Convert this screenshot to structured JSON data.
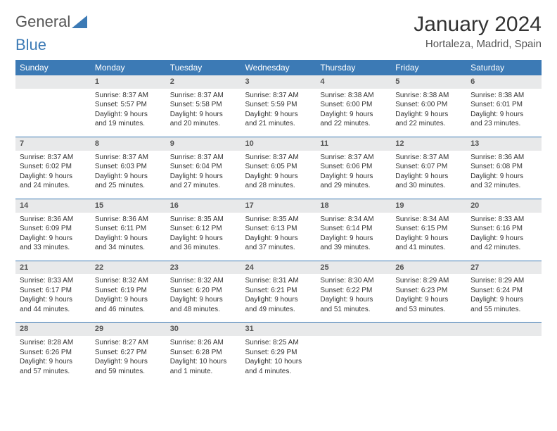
{
  "logo": {
    "word1": "General",
    "word2": "Blue"
  },
  "title": "January 2024",
  "subtitle": "Hortaleza, Madrid, Spain",
  "colors": {
    "header_bg": "#3c7ab5",
    "header_text": "#ffffff",
    "daynum_bg": "#e8e9ea",
    "rule": "#3c7ab5",
    "page_bg": "#ffffff"
  },
  "weekdays": [
    "Sunday",
    "Monday",
    "Tuesday",
    "Wednesday",
    "Thursday",
    "Friday",
    "Saturday"
  ],
  "grid": [
    [
      {
        "n": "",
        "sr": "",
        "ss": "",
        "d1": "",
        "d2": ""
      },
      {
        "n": "1",
        "sr": "Sunrise: 8:37 AM",
        "ss": "Sunset: 5:57 PM",
        "d1": "Daylight: 9 hours",
        "d2": "and 19 minutes."
      },
      {
        "n": "2",
        "sr": "Sunrise: 8:37 AM",
        "ss": "Sunset: 5:58 PM",
        "d1": "Daylight: 9 hours",
        "d2": "and 20 minutes."
      },
      {
        "n": "3",
        "sr": "Sunrise: 8:37 AM",
        "ss": "Sunset: 5:59 PM",
        "d1": "Daylight: 9 hours",
        "d2": "and 21 minutes."
      },
      {
        "n": "4",
        "sr": "Sunrise: 8:38 AM",
        "ss": "Sunset: 6:00 PM",
        "d1": "Daylight: 9 hours",
        "d2": "and 22 minutes."
      },
      {
        "n": "5",
        "sr": "Sunrise: 8:38 AM",
        "ss": "Sunset: 6:00 PM",
        "d1": "Daylight: 9 hours",
        "d2": "and 22 minutes."
      },
      {
        "n": "6",
        "sr": "Sunrise: 8:38 AM",
        "ss": "Sunset: 6:01 PM",
        "d1": "Daylight: 9 hours",
        "d2": "and 23 minutes."
      }
    ],
    [
      {
        "n": "7",
        "sr": "Sunrise: 8:37 AM",
        "ss": "Sunset: 6:02 PM",
        "d1": "Daylight: 9 hours",
        "d2": "and 24 minutes."
      },
      {
        "n": "8",
        "sr": "Sunrise: 8:37 AM",
        "ss": "Sunset: 6:03 PM",
        "d1": "Daylight: 9 hours",
        "d2": "and 25 minutes."
      },
      {
        "n": "9",
        "sr": "Sunrise: 8:37 AM",
        "ss": "Sunset: 6:04 PM",
        "d1": "Daylight: 9 hours",
        "d2": "and 27 minutes."
      },
      {
        "n": "10",
        "sr": "Sunrise: 8:37 AM",
        "ss": "Sunset: 6:05 PM",
        "d1": "Daylight: 9 hours",
        "d2": "and 28 minutes."
      },
      {
        "n": "11",
        "sr": "Sunrise: 8:37 AM",
        "ss": "Sunset: 6:06 PM",
        "d1": "Daylight: 9 hours",
        "d2": "and 29 minutes."
      },
      {
        "n": "12",
        "sr": "Sunrise: 8:37 AM",
        "ss": "Sunset: 6:07 PM",
        "d1": "Daylight: 9 hours",
        "d2": "and 30 minutes."
      },
      {
        "n": "13",
        "sr": "Sunrise: 8:36 AM",
        "ss": "Sunset: 6:08 PM",
        "d1": "Daylight: 9 hours",
        "d2": "and 32 minutes."
      }
    ],
    [
      {
        "n": "14",
        "sr": "Sunrise: 8:36 AM",
        "ss": "Sunset: 6:09 PM",
        "d1": "Daylight: 9 hours",
        "d2": "and 33 minutes."
      },
      {
        "n": "15",
        "sr": "Sunrise: 8:36 AM",
        "ss": "Sunset: 6:11 PM",
        "d1": "Daylight: 9 hours",
        "d2": "and 34 minutes."
      },
      {
        "n": "16",
        "sr": "Sunrise: 8:35 AM",
        "ss": "Sunset: 6:12 PM",
        "d1": "Daylight: 9 hours",
        "d2": "and 36 minutes."
      },
      {
        "n": "17",
        "sr": "Sunrise: 8:35 AM",
        "ss": "Sunset: 6:13 PM",
        "d1": "Daylight: 9 hours",
        "d2": "and 37 minutes."
      },
      {
        "n": "18",
        "sr": "Sunrise: 8:34 AM",
        "ss": "Sunset: 6:14 PM",
        "d1": "Daylight: 9 hours",
        "d2": "and 39 minutes."
      },
      {
        "n": "19",
        "sr": "Sunrise: 8:34 AM",
        "ss": "Sunset: 6:15 PM",
        "d1": "Daylight: 9 hours",
        "d2": "and 41 minutes."
      },
      {
        "n": "20",
        "sr": "Sunrise: 8:33 AM",
        "ss": "Sunset: 6:16 PM",
        "d1": "Daylight: 9 hours",
        "d2": "and 42 minutes."
      }
    ],
    [
      {
        "n": "21",
        "sr": "Sunrise: 8:33 AM",
        "ss": "Sunset: 6:17 PM",
        "d1": "Daylight: 9 hours",
        "d2": "and 44 minutes."
      },
      {
        "n": "22",
        "sr": "Sunrise: 8:32 AM",
        "ss": "Sunset: 6:19 PM",
        "d1": "Daylight: 9 hours",
        "d2": "and 46 minutes."
      },
      {
        "n": "23",
        "sr": "Sunrise: 8:32 AM",
        "ss": "Sunset: 6:20 PM",
        "d1": "Daylight: 9 hours",
        "d2": "and 48 minutes."
      },
      {
        "n": "24",
        "sr": "Sunrise: 8:31 AM",
        "ss": "Sunset: 6:21 PM",
        "d1": "Daylight: 9 hours",
        "d2": "and 49 minutes."
      },
      {
        "n": "25",
        "sr": "Sunrise: 8:30 AM",
        "ss": "Sunset: 6:22 PM",
        "d1": "Daylight: 9 hours",
        "d2": "and 51 minutes."
      },
      {
        "n": "26",
        "sr": "Sunrise: 8:29 AM",
        "ss": "Sunset: 6:23 PM",
        "d1": "Daylight: 9 hours",
        "d2": "and 53 minutes."
      },
      {
        "n": "27",
        "sr": "Sunrise: 8:29 AM",
        "ss": "Sunset: 6:24 PM",
        "d1": "Daylight: 9 hours",
        "d2": "and 55 minutes."
      }
    ],
    [
      {
        "n": "28",
        "sr": "Sunrise: 8:28 AM",
        "ss": "Sunset: 6:26 PM",
        "d1": "Daylight: 9 hours",
        "d2": "and 57 minutes."
      },
      {
        "n": "29",
        "sr": "Sunrise: 8:27 AM",
        "ss": "Sunset: 6:27 PM",
        "d1": "Daylight: 9 hours",
        "d2": "and 59 minutes."
      },
      {
        "n": "30",
        "sr": "Sunrise: 8:26 AM",
        "ss": "Sunset: 6:28 PM",
        "d1": "Daylight: 10 hours",
        "d2": "and 1 minute."
      },
      {
        "n": "31",
        "sr": "Sunrise: 8:25 AM",
        "ss": "Sunset: 6:29 PM",
        "d1": "Daylight: 10 hours",
        "d2": "and 4 minutes."
      },
      {
        "n": "",
        "sr": "",
        "ss": "",
        "d1": "",
        "d2": ""
      },
      {
        "n": "",
        "sr": "",
        "ss": "",
        "d1": "",
        "d2": ""
      },
      {
        "n": "",
        "sr": "",
        "ss": "",
        "d1": "",
        "d2": ""
      }
    ]
  ]
}
